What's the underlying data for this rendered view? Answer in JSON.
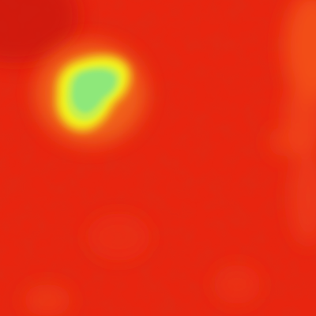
{
  "image": {
    "kind": "thermal-heatmap",
    "colormap": "red-orange-yellow-green",
    "colors": {
      "background_red": "#e8250f",
      "dark_red": "#c8180c",
      "orange": "#f26a1a",
      "yellow": "#f2f51e",
      "yellow_green": "#c6f050",
      "green": "#8ee87a"
    },
    "features": [
      {
        "name": "hot-spot",
        "description_label": "bright blob",
        "peak_level": 1.0
      },
      {
        "name": "right-edge-warm-band",
        "peak_level": 0.35
      }
    ]
  }
}
